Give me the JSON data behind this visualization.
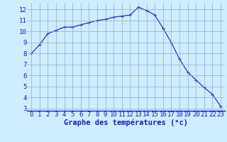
{
  "x": [
    0,
    1,
    2,
    3,
    4,
    5,
    6,
    7,
    8,
    9,
    10,
    11,
    12,
    13,
    14,
    15,
    16,
    17,
    18,
    19,
    20,
    21,
    22,
    23
  ],
  "y": [
    8.0,
    8.8,
    9.8,
    10.1,
    10.4,
    10.4,
    10.6,
    10.8,
    11.0,
    11.1,
    11.3,
    11.4,
    11.5,
    12.2,
    11.9,
    11.5,
    10.3,
    9.0,
    7.5,
    6.3,
    5.6,
    4.9,
    4.3,
    3.2
  ],
  "line_color": "#1a1acc",
  "marker": "+",
  "marker_size": 3.5,
  "bg_color": "#cceeff",
  "grid_color": "#99aacc",
  "xlabel": "Graphe des températures (°c)",
  "xlabel_color": "#1a1acc",
  "xlabel_fontsize": 7.5,
  "tick_color": "#1a1acc",
  "tick_fontsize": 6.5,
  "ylim": [
    2.8,
    12.6
  ],
  "yticks": [
    3,
    4,
    5,
    6,
    7,
    8,
    9,
    10,
    11,
    12
  ],
  "xlim": [
    -0.5,
    23.5
  ],
  "xticks": [
    0,
    1,
    2,
    3,
    4,
    5,
    6,
    7,
    8,
    9,
    10,
    11,
    12,
    13,
    14,
    15,
    16,
    17,
    18,
    19,
    20,
    21,
    22,
    23
  ]
}
